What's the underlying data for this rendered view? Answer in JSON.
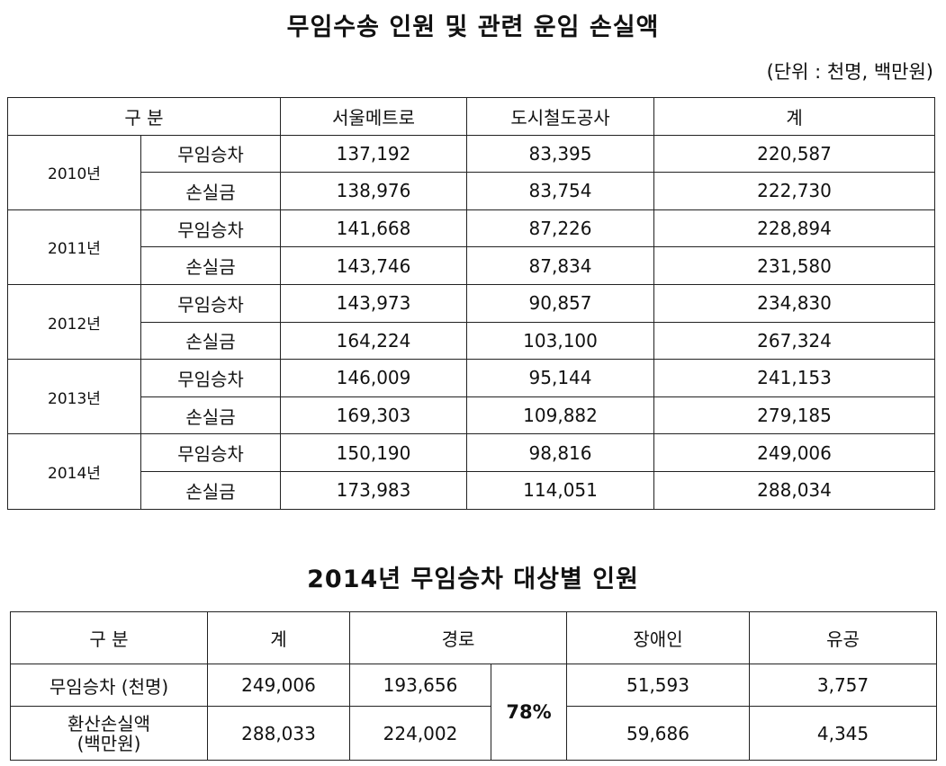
{
  "title1": "무임수송 인원 및 관련 운임 손실액",
  "unit": "(단위 : 천명, 백만원)",
  "table1": {
    "headers": [
      "구 분",
      "서울메트로",
      "도시철도공사",
      "계"
    ],
    "rows": [
      {
        "year": "2010년",
        "items": [
          {
            "label": "무임승차",
            "values": [
              "137,192",
              "83,395",
              "220,587"
            ]
          },
          {
            "label": "손실금",
            "values": [
              "138,976",
              "83,754",
              "222,730"
            ]
          }
        ]
      },
      {
        "year": "2011년",
        "items": [
          {
            "label": "무임승차",
            "values": [
              "141,668",
              "87,226",
              "228,894"
            ]
          },
          {
            "label": "손실금",
            "values": [
              "143,746",
              "87,834",
              "231,580"
            ]
          }
        ]
      },
      {
        "year": "2012년",
        "items": [
          {
            "label": "무임승차",
            "values": [
              "143,973",
              "90,857",
              "234,830"
            ]
          },
          {
            "label": "손실금",
            "values": [
              "164,224",
              "103,100",
              "267,324"
            ]
          }
        ]
      },
      {
        "year": "2013년",
        "items": [
          {
            "label": "무임승차",
            "values": [
              "146,009",
              "95,144",
              "241,153"
            ]
          },
          {
            "label": "손실금",
            "values": [
              "169,303",
              "109,882",
              "279,185"
            ]
          }
        ]
      },
      {
        "year": "2014년",
        "items": [
          {
            "label": "무임승차",
            "values": [
              "150,190",
              "98,816",
              "249,006"
            ]
          },
          {
            "label": "손실금",
            "values": [
              "173,983",
              "114,051",
              "288,034"
            ]
          }
        ]
      }
    ]
  },
  "title2": "2014년 무임승차 대상별 인원",
  "table2": {
    "headers": [
      "구 분",
      "계",
      "경로",
      "장애인",
      "유공"
    ],
    "pct": "78%",
    "rows": [
      {
        "label": "무임승차 (천명)",
        "total": "249,006",
        "elderly": "193,656",
        "disabled": "51,593",
        "veteran": "3,757"
      },
      {
        "label": "환산손실액\n(백만원)",
        "total": "288,033",
        "elderly": "224,002",
        "disabled": "59,686",
        "veteran": "4,345"
      }
    ]
  }
}
